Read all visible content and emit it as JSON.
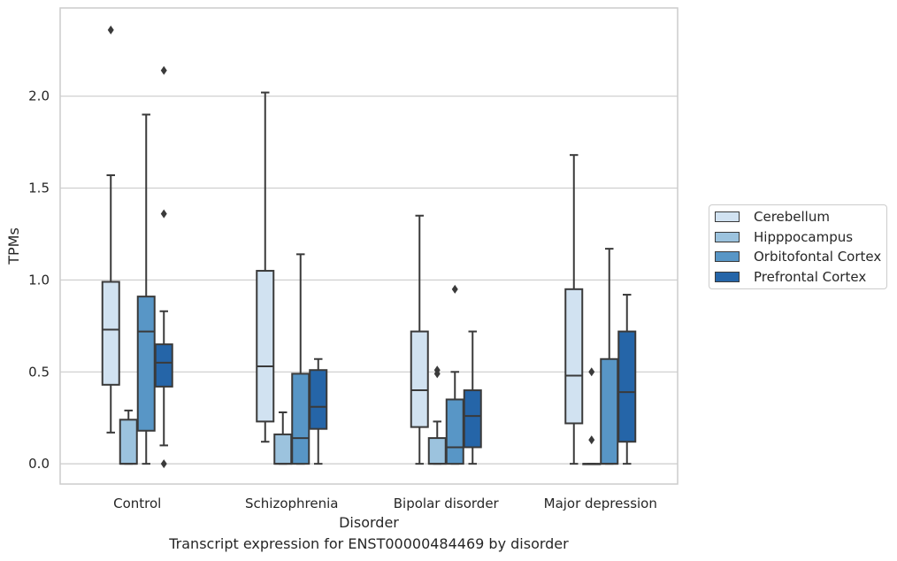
{
  "caption": "Transcript expression for ENST00000484469 by disorder",
  "chart_data": {
    "type": "box",
    "xlabel": "Disorder",
    "ylabel": "TPMs",
    "ylim": [
      -0.11,
      2.48
    ],
    "yticks": [
      0.0,
      0.5,
      1.0,
      1.5,
      2.0
    ],
    "ytick_labels": [
      "0.0",
      "0.5",
      "1.0",
      "1.5",
      "2.0"
    ],
    "grid": "horizontal",
    "legend_position": "right",
    "categories": [
      "Control",
      "Schizophrenia",
      "Bipolar disorder",
      "Major depression"
    ],
    "series": [
      {
        "name": "Cerebellum",
        "color": "#d1e2f1",
        "boxes": [
          {
            "whislo": 0.17,
            "q1": 0.43,
            "med": 0.73,
            "q3": 0.99,
            "whishi": 1.57,
            "fliers": [
              2.36
            ]
          },
          {
            "whislo": 0.12,
            "q1": 0.23,
            "med": 0.53,
            "q3": 1.05,
            "whishi": 2.02,
            "fliers": []
          },
          {
            "whislo": 0.0,
            "q1": 0.2,
            "med": 0.4,
            "q3": 0.72,
            "whishi": 1.35,
            "fliers": []
          },
          {
            "whislo": 0.0,
            "q1": 0.22,
            "med": 0.48,
            "q3": 0.95,
            "whishi": 1.68,
            "fliers": []
          }
        ]
      },
      {
        "name": "Hipppocampus",
        "color": "#9cc3de",
        "boxes": [
          {
            "whislo": 0.0,
            "q1": 0.0,
            "med": 0.0,
            "q3": 0.24,
            "whishi": 0.29,
            "fliers": []
          },
          {
            "whislo": 0.0,
            "q1": 0.0,
            "med": 0.0,
            "q3": 0.16,
            "whishi": 0.28,
            "fliers": []
          },
          {
            "whislo": 0.0,
            "q1": 0.0,
            "med": 0.0,
            "q3": 0.14,
            "whishi": 0.23,
            "fliers": [
              0.49,
              0.51
            ]
          },
          {
            "whislo": 0.0,
            "q1": 0.0,
            "med": 0.0,
            "q3": 0.0,
            "whishi": 0.0,
            "fliers": [
              0.13,
              0.5
            ]
          }
        ]
      },
      {
        "name": "Orbitofontal Cortex",
        "color": "#5896c6",
        "boxes": [
          {
            "whislo": 0.0,
            "q1": 0.18,
            "med": 0.72,
            "q3": 0.91,
            "whishi": 1.9,
            "fliers": []
          },
          {
            "whislo": 0.0,
            "q1": 0.0,
            "med": 0.14,
            "q3": 0.49,
            "whishi": 1.14,
            "fliers": []
          },
          {
            "whislo": 0.0,
            "q1": 0.0,
            "med": 0.09,
            "q3": 0.35,
            "whishi": 0.5,
            "fliers": [
              0.95
            ]
          },
          {
            "whislo": 0.0,
            "q1": 0.0,
            "med": 0.0,
            "q3": 0.57,
            "whishi": 1.17,
            "fliers": []
          }
        ]
      },
      {
        "name": "Prefrontal Cortex",
        "color": "#2565a8",
        "boxes": [
          {
            "whislo": 0.1,
            "q1": 0.42,
            "med": 0.55,
            "q3": 0.65,
            "whishi": 0.83,
            "fliers": [
              0.0,
              1.36,
              2.14
            ]
          },
          {
            "whislo": 0.0,
            "q1": 0.19,
            "med": 0.31,
            "q3": 0.51,
            "whishi": 0.57,
            "fliers": []
          },
          {
            "whislo": 0.0,
            "q1": 0.09,
            "med": 0.26,
            "q3": 0.4,
            "whishi": 0.72,
            "fliers": []
          },
          {
            "whislo": 0.0,
            "q1": 0.12,
            "med": 0.39,
            "q3": 0.72,
            "whishi": 0.92,
            "fliers": []
          }
        ]
      }
    ]
  }
}
